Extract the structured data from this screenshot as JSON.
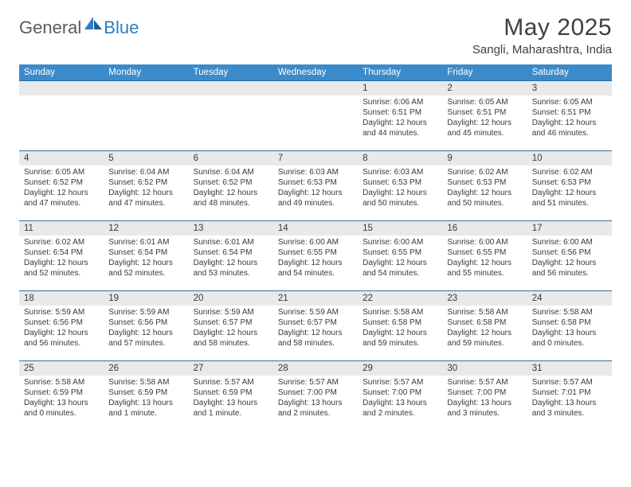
{
  "brand": {
    "general": "General",
    "blue": "Blue"
  },
  "title": "May 2025",
  "location": "Sangli, Maharashtra, India",
  "colors": {
    "header_bg": "#3b8bca",
    "header_text": "#ffffff",
    "row_border": "#2d6fa8",
    "daynum_bg": "#e9e9e9",
    "logo_gray": "#5a5a5a",
    "logo_blue": "#2d7dc0"
  },
  "weekdays": [
    "Sunday",
    "Monday",
    "Tuesday",
    "Wednesday",
    "Thursday",
    "Friday",
    "Saturday"
  ],
  "weeks": [
    [
      {
        "day": "",
        "sunrise": "",
        "sunset": "",
        "daylight": ""
      },
      {
        "day": "",
        "sunrise": "",
        "sunset": "",
        "daylight": ""
      },
      {
        "day": "",
        "sunrise": "",
        "sunset": "",
        "daylight": ""
      },
      {
        "day": "",
        "sunrise": "",
        "sunset": "",
        "daylight": ""
      },
      {
        "day": "1",
        "sunrise": "Sunrise: 6:06 AM",
        "sunset": "Sunset: 6:51 PM",
        "daylight": "Daylight: 12 hours and 44 minutes."
      },
      {
        "day": "2",
        "sunrise": "Sunrise: 6:05 AM",
        "sunset": "Sunset: 6:51 PM",
        "daylight": "Daylight: 12 hours and 45 minutes."
      },
      {
        "day": "3",
        "sunrise": "Sunrise: 6:05 AM",
        "sunset": "Sunset: 6:51 PM",
        "daylight": "Daylight: 12 hours and 46 minutes."
      }
    ],
    [
      {
        "day": "4",
        "sunrise": "Sunrise: 6:05 AM",
        "sunset": "Sunset: 6:52 PM",
        "daylight": "Daylight: 12 hours and 47 minutes."
      },
      {
        "day": "5",
        "sunrise": "Sunrise: 6:04 AM",
        "sunset": "Sunset: 6:52 PM",
        "daylight": "Daylight: 12 hours and 47 minutes."
      },
      {
        "day": "6",
        "sunrise": "Sunrise: 6:04 AM",
        "sunset": "Sunset: 6:52 PM",
        "daylight": "Daylight: 12 hours and 48 minutes."
      },
      {
        "day": "7",
        "sunrise": "Sunrise: 6:03 AM",
        "sunset": "Sunset: 6:53 PM",
        "daylight": "Daylight: 12 hours and 49 minutes."
      },
      {
        "day": "8",
        "sunrise": "Sunrise: 6:03 AM",
        "sunset": "Sunset: 6:53 PM",
        "daylight": "Daylight: 12 hours and 50 minutes."
      },
      {
        "day": "9",
        "sunrise": "Sunrise: 6:02 AM",
        "sunset": "Sunset: 6:53 PM",
        "daylight": "Daylight: 12 hours and 50 minutes."
      },
      {
        "day": "10",
        "sunrise": "Sunrise: 6:02 AM",
        "sunset": "Sunset: 6:53 PM",
        "daylight": "Daylight: 12 hours and 51 minutes."
      }
    ],
    [
      {
        "day": "11",
        "sunrise": "Sunrise: 6:02 AM",
        "sunset": "Sunset: 6:54 PM",
        "daylight": "Daylight: 12 hours and 52 minutes."
      },
      {
        "day": "12",
        "sunrise": "Sunrise: 6:01 AM",
        "sunset": "Sunset: 6:54 PM",
        "daylight": "Daylight: 12 hours and 52 minutes."
      },
      {
        "day": "13",
        "sunrise": "Sunrise: 6:01 AM",
        "sunset": "Sunset: 6:54 PM",
        "daylight": "Daylight: 12 hours and 53 minutes."
      },
      {
        "day": "14",
        "sunrise": "Sunrise: 6:00 AM",
        "sunset": "Sunset: 6:55 PM",
        "daylight": "Daylight: 12 hours and 54 minutes."
      },
      {
        "day": "15",
        "sunrise": "Sunrise: 6:00 AM",
        "sunset": "Sunset: 6:55 PM",
        "daylight": "Daylight: 12 hours and 54 minutes."
      },
      {
        "day": "16",
        "sunrise": "Sunrise: 6:00 AM",
        "sunset": "Sunset: 6:55 PM",
        "daylight": "Daylight: 12 hours and 55 minutes."
      },
      {
        "day": "17",
        "sunrise": "Sunrise: 6:00 AM",
        "sunset": "Sunset: 6:56 PM",
        "daylight": "Daylight: 12 hours and 56 minutes."
      }
    ],
    [
      {
        "day": "18",
        "sunrise": "Sunrise: 5:59 AM",
        "sunset": "Sunset: 6:56 PM",
        "daylight": "Daylight: 12 hours and 56 minutes."
      },
      {
        "day": "19",
        "sunrise": "Sunrise: 5:59 AM",
        "sunset": "Sunset: 6:56 PM",
        "daylight": "Daylight: 12 hours and 57 minutes."
      },
      {
        "day": "20",
        "sunrise": "Sunrise: 5:59 AM",
        "sunset": "Sunset: 6:57 PM",
        "daylight": "Daylight: 12 hours and 58 minutes."
      },
      {
        "day": "21",
        "sunrise": "Sunrise: 5:59 AM",
        "sunset": "Sunset: 6:57 PM",
        "daylight": "Daylight: 12 hours and 58 minutes."
      },
      {
        "day": "22",
        "sunrise": "Sunrise: 5:58 AM",
        "sunset": "Sunset: 6:58 PM",
        "daylight": "Daylight: 12 hours and 59 minutes."
      },
      {
        "day": "23",
        "sunrise": "Sunrise: 5:58 AM",
        "sunset": "Sunset: 6:58 PM",
        "daylight": "Daylight: 12 hours and 59 minutes."
      },
      {
        "day": "24",
        "sunrise": "Sunrise: 5:58 AM",
        "sunset": "Sunset: 6:58 PM",
        "daylight": "Daylight: 13 hours and 0 minutes."
      }
    ],
    [
      {
        "day": "25",
        "sunrise": "Sunrise: 5:58 AM",
        "sunset": "Sunset: 6:59 PM",
        "daylight": "Daylight: 13 hours and 0 minutes."
      },
      {
        "day": "26",
        "sunrise": "Sunrise: 5:58 AM",
        "sunset": "Sunset: 6:59 PM",
        "daylight": "Daylight: 13 hours and 1 minute."
      },
      {
        "day": "27",
        "sunrise": "Sunrise: 5:57 AM",
        "sunset": "Sunset: 6:59 PM",
        "daylight": "Daylight: 13 hours and 1 minute."
      },
      {
        "day": "28",
        "sunrise": "Sunrise: 5:57 AM",
        "sunset": "Sunset: 7:00 PM",
        "daylight": "Daylight: 13 hours and 2 minutes."
      },
      {
        "day": "29",
        "sunrise": "Sunrise: 5:57 AM",
        "sunset": "Sunset: 7:00 PM",
        "daylight": "Daylight: 13 hours and 2 minutes."
      },
      {
        "day": "30",
        "sunrise": "Sunrise: 5:57 AM",
        "sunset": "Sunset: 7:00 PM",
        "daylight": "Daylight: 13 hours and 3 minutes."
      },
      {
        "day": "31",
        "sunrise": "Sunrise: 5:57 AM",
        "sunset": "Sunset: 7:01 PM",
        "daylight": "Daylight: 13 hours and 3 minutes."
      }
    ]
  ]
}
